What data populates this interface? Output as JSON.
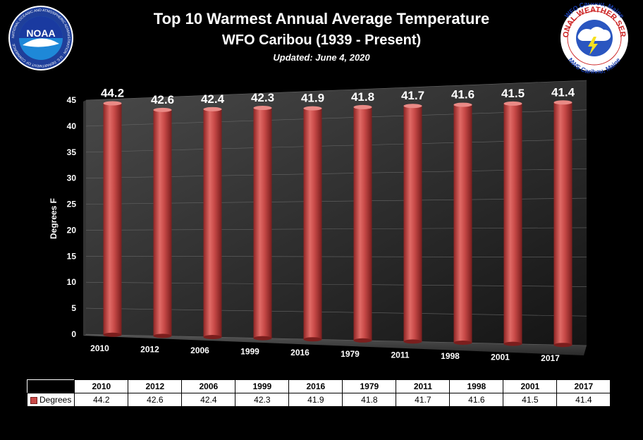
{
  "header": {
    "title": "Top 10 Warmest  Annual Average Temperature",
    "subtitle": "WFO Caribou (1939 - Present)",
    "updated": "Updated:  June 4, 2020"
  },
  "logos": {
    "noaa": {
      "text": "NOAA",
      "ring_text": "NATIONAL OCEANIC AND ATMOSPHERIC ADMINISTRATION · U.S. DEPARTMENT OF COMMERCE"
    },
    "nws": {
      "top_text": "WFO Caribou, Maine",
      "ring_text": "NATIONAL WEATHER SERVICE",
      "bottom_text": "NWS Caribou, Maine"
    }
  },
  "chart_data": {
    "type": "bar",
    "title": "Top 10 Warmest  Annual Average Temperature",
    "subtitle": "WFO Caribou (1939 - Present)",
    "ylabel": "Degrees F",
    "xlabel": "",
    "ylim": [
      0,
      45
    ],
    "yticks": [
      0,
      5,
      10,
      15,
      20,
      25,
      30,
      35,
      40,
      45
    ],
    "categories": [
      "2010",
      "2012",
      "2006",
      "1999",
      "2016",
      "1979",
      "2011",
      "1998",
      "2001",
      "2017"
    ],
    "series": [
      {
        "name": "Degrees",
        "values": [
          44.2,
          42.6,
          42.4,
          42.3,
          41.9,
          41.8,
          41.7,
          41.6,
          41.5,
          41.4
        ],
        "color": "#c84a48"
      }
    ],
    "data_labels": [
      "44.2",
      "42.6",
      "42.4",
      "42.3",
      "41.9",
      "41.8",
      "41.7",
      "41.6",
      "41.5",
      "41.4"
    ],
    "grid": true
  },
  "table": {
    "row_label": "Degrees"
  }
}
